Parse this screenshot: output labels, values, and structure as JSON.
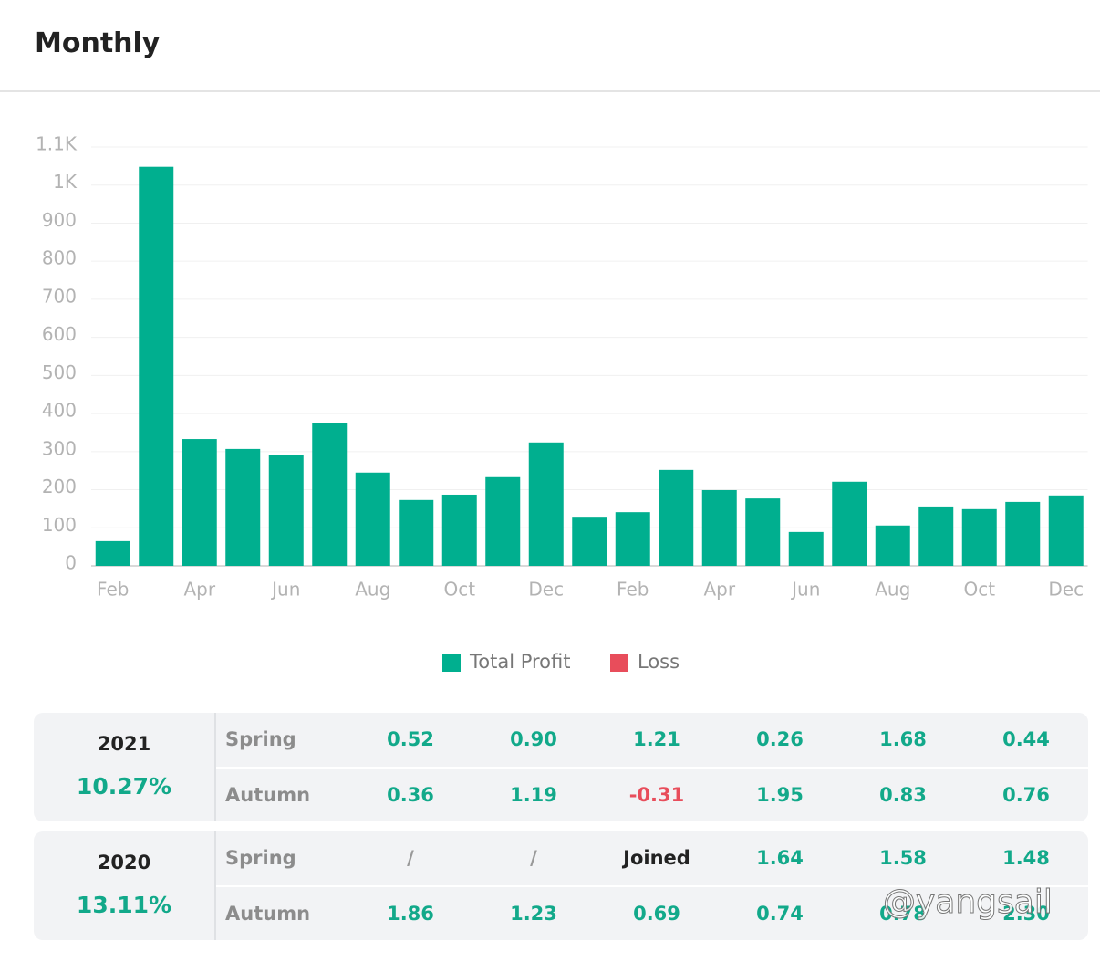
{
  "header": {
    "title": "Monthly"
  },
  "chart_data": {
    "type": "bar",
    "categories": [
      "Feb",
      null,
      "Apr",
      null,
      "Jun",
      null,
      "Aug",
      null,
      "Oct",
      null,
      "Dec",
      null,
      "Feb",
      null,
      "Apr",
      null,
      "Jun",
      null,
      "Aug",
      null,
      "Oct",
      null,
      "Dec"
    ],
    "series": [
      {
        "name": "Total Profit",
        "color": "#00af8f",
        "values": [
          65,
          1048,
          333,
          307,
          290,
          374,
          245,
          173,
          187,
          233,
          324,
          129,
          141,
          252,
          199,
          177,
          89,
          221,
          106,
          156,
          149,
          168,
          185
        ]
      },
      {
        "name": "Loss",
        "color": "#e84d5b",
        "values": [
          null,
          null,
          null,
          null,
          null,
          null,
          null,
          null,
          null,
          null,
          null,
          null,
          null,
          null,
          null,
          null,
          null,
          null,
          null,
          null,
          null,
          null,
          null
        ]
      }
    ],
    "ylim": [
      0,
      1100
    ],
    "yticks": [
      0,
      100,
      200,
      300,
      400,
      500,
      600,
      700,
      800,
      900,
      {
        "value": 1000,
        "label": "1K"
      },
      {
        "value": 1100,
        "label": "1.1K"
      }
    ],
    "grid": true,
    "legend": "bottom"
  },
  "table": {
    "blocks": [
      {
        "year": "2021",
        "rate": "10.27%",
        "rows": [
          {
            "label": "Spring",
            "cells": [
              "0.52",
              "0.90",
              "1.21",
              "0.26",
              "1.68",
              "0.44"
            ]
          },
          {
            "label": "Autumn",
            "cells": [
              "0.36",
              "1.19",
              "-0.31",
              "1.95",
              "0.83",
              "0.76"
            ]
          }
        ]
      },
      {
        "year": "2020",
        "rate": "13.11%",
        "rows": [
          {
            "label": "Spring",
            "cells": [
              "/",
              "/",
              "Joined",
              "1.64",
              "1.58",
              "1.48"
            ]
          },
          {
            "label": "Autumn",
            "cells": [
              "1.86",
              "1.23",
              "0.69",
              "0.74",
              "0.78",
              "2.30"
            ]
          }
        ]
      }
    ]
  },
  "watermark": "@yangsail"
}
